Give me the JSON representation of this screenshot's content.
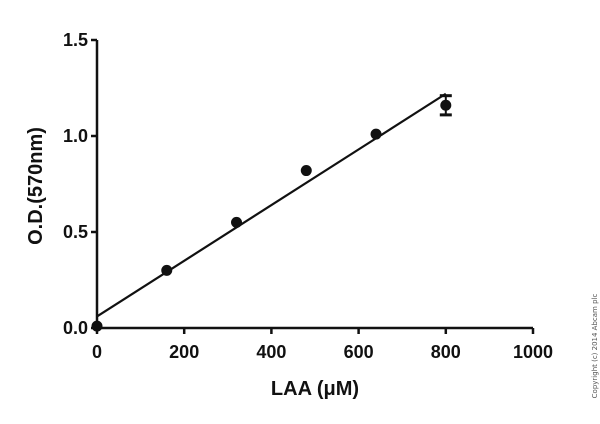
{
  "chart_data": {
    "type": "scatter",
    "title": "",
    "xlabel": "LAA (μM)",
    "ylabel": "O.D.(570nm)",
    "xlim": [
      0,
      1000
    ],
    "ylim": [
      0,
      1.5
    ],
    "x_ticks": [
      0,
      200,
      400,
      600,
      800,
      1000
    ],
    "y_ticks": [
      0.0,
      0.5,
      1.0,
      1.5
    ],
    "x_tick_labels": [
      "0",
      "200",
      "400",
      "600",
      "800",
      "1000"
    ],
    "y_tick_labels": [
      "0.0",
      "0.5",
      "1.0",
      "1.5"
    ],
    "grid": false,
    "legend": null,
    "series": [
      {
        "name": "O.D. 570nm",
        "marker": "filled-circle",
        "x": [
          0,
          160,
          320,
          480,
          640,
          800
        ],
        "y": [
          0.01,
          0.3,
          0.55,
          0.82,
          1.01,
          1.16
        ],
        "error": [
          0,
          0,
          0,
          0,
          0,
          0.05
        ]
      }
    ],
    "fit_line": {
      "type": "linear",
      "x": [
        0,
        800
      ],
      "y": [
        0.06,
        1.22
      ]
    },
    "annotations": [
      "Copyright (c) 2014 Abcam plc"
    ]
  },
  "labels": {
    "xlabel": "LAA (μM)",
    "ylabel": "O.D.(570nm)",
    "copyright": "Copyright (c) 2014 Abcam plc"
  },
  "colors": {
    "ink": "#111111",
    "background": "#ffffff",
    "copyright": "#555555"
  }
}
